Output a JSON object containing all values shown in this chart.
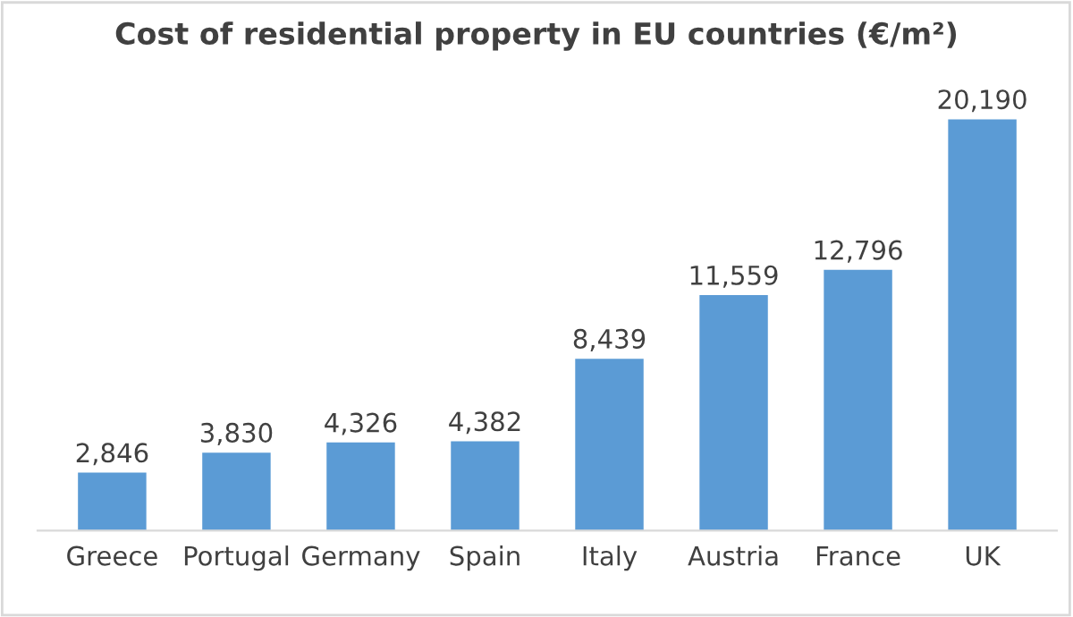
{
  "chart_data": {
    "type": "bar",
    "title": "Cost of residential property in EU countries (€/m²)",
    "categories": [
      "Greece",
      "Portugal",
      "Germany",
      "Spain",
      "Italy",
      "Austria",
      "France",
      "UK"
    ],
    "values": [
      2846,
      3830,
      4326,
      4382,
      8439,
      11559,
      12796,
      20190
    ],
    "value_labels": [
      "2,846",
      "3,830",
      "4,326",
      "4,382",
      "8,439",
      "11,559",
      "12,796",
      "20,190"
    ],
    "color": "#5b9bd5",
    "grid": false,
    "legend": false
  }
}
